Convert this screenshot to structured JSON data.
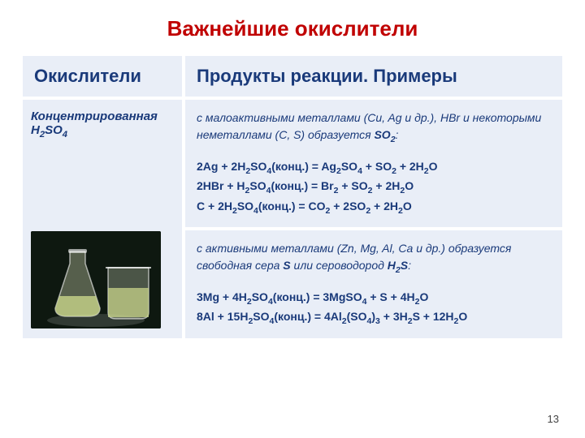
{
  "title": "Важнейшие окислители",
  "header": {
    "left": "Окислители",
    "right": "Продукты реакции. Примеры"
  },
  "row": {
    "left_html": "Концентрированная H<sub>2</sub>SO<sub>4</sub>",
    "box1": {
      "intro_html": "с малоактивными металлами (Cu, Ag и др.), HBr и некоторыми неметаллами (C, S) образуется <b>SO<sub>2</sub></b>:",
      "eqs_html": "2Ag + 2H<sub>2</sub>SO<sub>4</sub>(конц.) = Ag<sub>2</sub>SO<sub>4</sub> + SO<sub>2</sub> + 2H<sub>2</sub>O<br>2HBr + H<sub>2</sub>SO<sub>4</sub>(конц.) = Br<sub>2</sub> + SO<sub>2</sub> + 2H<sub>2</sub>O<br>C + 2H<sub>2</sub>SO<sub>4</sub>(конц.) = CO<sub>2</sub> + 2SO<sub>2</sub> + 2H<sub>2</sub>O"
    },
    "box2": {
      "intro_html": "с активными металлами (Zn, Mg, Al, Ca и др.) образуется свободная сера <b>S</b> или сероводород <b>H<sub>2</sub>S</b>:",
      "eqs_html": "3Mg + 4H<sub>2</sub>SO<sub>4</sub>(конц.) = 3MgSO<sub>4</sub> + S + 4H<sub>2</sub>O<br>8Al + 15H<sub>2</sub>SO<sub>4</sub>(конц.) = 4Al<sub>2</sub>(SO<sub>4</sub>)<sub>3</sub> + 3H<sub>2</sub>S + 12H<sub>2</sub>O"
    }
  },
  "page_number": "13",
  "colors": {
    "title": "#C00000",
    "cell_bg": "#e9eef7",
    "text": "#1a3a7a"
  }
}
